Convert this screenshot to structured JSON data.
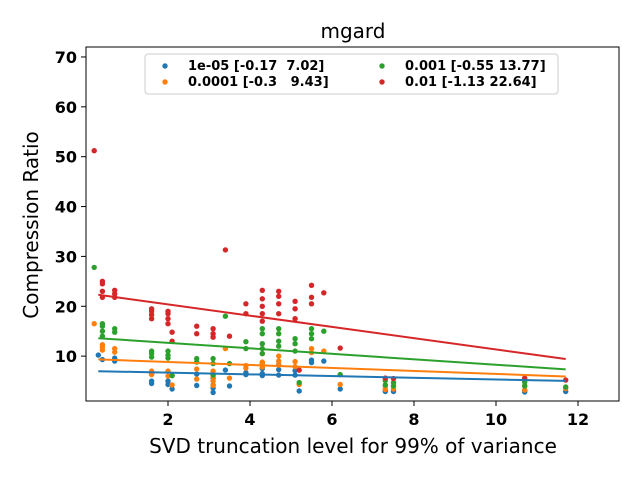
{
  "chart_data": {
    "type": "scatter",
    "title": "mgard",
    "xlabel": "SVD truncation level for 99% of variance",
    "ylabel": "Compression Ratio",
    "xlim": [
      0.0,
      13.0
    ],
    "ylim": [
      1.0,
      72.0
    ],
    "xticks": [
      2,
      4,
      6,
      8,
      10,
      12
    ],
    "yticks": [
      10,
      20,
      30,
      40,
      50,
      60,
      70
    ],
    "grid": false,
    "legend_position": "top-center",
    "legend_columns": 2,
    "series": [
      {
        "name": "1e-05 [-0.17  7.02]",
        "color": "#1f77b4",
        "slope": -0.17,
        "intercept": 7.02,
        "points": [
          [
            0.3,
            10.2
          ],
          [
            0.4,
            9.3
          ],
          [
            0.7,
            9.0
          ],
          [
            0.7,
            9.6
          ],
          [
            1.6,
            4.5
          ],
          [
            1.6,
            5.0
          ],
          [
            1.6,
            6.5
          ],
          [
            2.0,
            4.3
          ],
          [
            2.0,
            5.0
          ],
          [
            2.1,
            3.4
          ],
          [
            2.1,
            6.1
          ],
          [
            2.7,
            4.1
          ],
          [
            2.7,
            6.4
          ],
          [
            3.1,
            2.7
          ],
          [
            3.1,
            3.6
          ],
          [
            3.1,
            4.2
          ],
          [
            3.1,
            5.6
          ],
          [
            3.4,
            7.2
          ],
          [
            3.5,
            4.0
          ],
          [
            3.9,
            6.3
          ],
          [
            3.9,
            6.7
          ],
          [
            4.3,
            6.1
          ],
          [
            4.3,
            6.5
          ],
          [
            4.3,
            7.5
          ],
          [
            4.3,
            8.6
          ],
          [
            4.7,
            6.2
          ],
          [
            4.7,
            7.3
          ],
          [
            4.7,
            8.3
          ],
          [
            5.1,
            6.2
          ],
          [
            5.1,
            7.1
          ],
          [
            5.2,
            3.0
          ],
          [
            5.5,
            8.7
          ],
          [
            5.5,
            9.2
          ],
          [
            5.8,
            9.0
          ],
          [
            6.2,
            3.4
          ],
          [
            7.3,
            2.9
          ],
          [
            7.3,
            3.3
          ],
          [
            7.5,
            2.9
          ],
          [
            7.5,
            3.2
          ],
          [
            10.7,
            2.8
          ],
          [
            10.7,
            3.1
          ],
          [
            11.7,
            2.9
          ]
        ]
      },
      {
        "name": "0.0001 [-0.3   9.43]",
        "color": "#ff7f0e",
        "slope": -0.3,
        "intercept": 9.43,
        "points": [
          [
            0.2,
            16.5
          ],
          [
            0.4,
            11.2
          ],
          [
            0.4,
            11.8
          ],
          [
            0.4,
            12.3
          ],
          [
            0.7,
            10.8
          ],
          [
            0.7,
            11.5
          ],
          [
            1.6,
            6.3
          ],
          [
            1.6,
            7.0
          ],
          [
            2.0,
            6.0
          ],
          [
            2.0,
            7.0
          ],
          [
            2.1,
            4.2
          ],
          [
            2.7,
            5.4
          ],
          [
            2.7,
            7.4
          ],
          [
            3.1,
            4.1
          ],
          [
            3.1,
            5.0
          ],
          [
            3.1,
            5.8
          ],
          [
            3.1,
            7.0
          ],
          [
            3.4,
            11.5
          ],
          [
            3.5,
            5.6
          ],
          [
            3.9,
            7.6
          ],
          [
            3.9,
            8.1
          ],
          [
            4.3,
            7.8
          ],
          [
            4.3,
            8.3
          ],
          [
            4.3,
            8.8
          ],
          [
            4.3,
            10.5
          ],
          [
            4.7,
            8.2
          ],
          [
            4.7,
            9.0
          ],
          [
            4.7,
            10.0
          ],
          [
            5.1,
            7.9
          ],
          [
            5.1,
            8.9
          ],
          [
            5.2,
            4.3
          ],
          [
            5.5,
            10.7
          ],
          [
            5.5,
            11.5
          ],
          [
            5.8,
            11.0
          ],
          [
            6.2,
            4.3
          ],
          [
            7.3,
            3.3
          ],
          [
            7.3,
            4.0
          ],
          [
            7.5,
            3.4
          ],
          [
            7.5,
            4.0
          ],
          [
            10.7,
            3.2
          ],
          [
            10.7,
            4.0
          ],
          [
            11.7,
            3.5
          ]
        ]
      },
      {
        "name": "0.001 [-0.55 13.77]",
        "color": "#2ca02c",
        "slope": -0.55,
        "intercept": 13.77,
        "points": [
          [
            0.2,
            27.8
          ],
          [
            0.4,
            14.0
          ],
          [
            0.4,
            15.0
          ],
          [
            0.4,
            16.0
          ],
          [
            0.4,
            16.5
          ],
          [
            0.7,
            14.8
          ],
          [
            0.7,
            15.5
          ],
          [
            1.6,
            9.8
          ],
          [
            1.6,
            10.5
          ],
          [
            1.6,
            11.0
          ],
          [
            2.0,
            9.6
          ],
          [
            2.0,
            10.2
          ],
          [
            2.0,
            11.0
          ],
          [
            2.1,
            6.1
          ],
          [
            2.7,
            8.8
          ],
          [
            2.7,
            9.5
          ],
          [
            3.1,
            6.2
          ],
          [
            3.1,
            8.5
          ],
          [
            3.1,
            9.5
          ],
          [
            3.4,
            18.0
          ],
          [
            3.5,
            8.5
          ],
          [
            3.9,
            11.5
          ],
          [
            3.9,
            12.9
          ],
          [
            4.3,
            10.5
          ],
          [
            4.3,
            11.5
          ],
          [
            4.3,
            12.5
          ],
          [
            4.3,
            14.5
          ],
          [
            4.3,
            15.5
          ],
          [
            4.7,
            12.0
          ],
          [
            4.7,
            13.0
          ],
          [
            4.7,
            14.5
          ],
          [
            4.7,
            15.5
          ],
          [
            5.1,
            11.0
          ],
          [
            5.1,
            12.5
          ],
          [
            5.1,
            13.5
          ],
          [
            5.2,
            4.7
          ],
          [
            5.5,
            13.5
          ],
          [
            5.5,
            14.5
          ],
          [
            5.5,
            15.5
          ],
          [
            5.8,
            15.0
          ],
          [
            6.2,
            6.3
          ],
          [
            7.3,
            4.2
          ],
          [
            7.3,
            5.1
          ],
          [
            7.5,
            4.0
          ],
          [
            7.5,
            4.7
          ],
          [
            10.7,
            4.0
          ],
          [
            10.7,
            4.8
          ],
          [
            11.7,
            3.8
          ]
        ]
      },
      {
        "name": "0.01 [-1.13 22.64]",
        "color": "#d62728",
        "slope": -1.13,
        "intercept": 22.64,
        "points": [
          [
            0.2,
            51.2
          ],
          [
            0.4,
            21.8
          ],
          [
            0.4,
            23.0
          ],
          [
            0.4,
            24.5
          ],
          [
            0.4,
            25.0
          ],
          [
            0.7,
            21.8
          ],
          [
            0.7,
            22.5
          ],
          [
            0.7,
            23.2
          ],
          [
            1.6,
            17.5
          ],
          [
            1.6,
            18.3
          ],
          [
            1.6,
            19.0
          ],
          [
            1.6,
            19.5
          ],
          [
            2.0,
            16.5
          ],
          [
            2.0,
            17.5
          ],
          [
            2.0,
            18.5
          ],
          [
            2.0,
            19.0
          ],
          [
            2.1,
            14.8
          ],
          [
            2.1,
            13.0
          ],
          [
            2.7,
            14.5
          ],
          [
            2.7,
            16.0
          ],
          [
            3.1,
            13.8
          ],
          [
            3.1,
            14.5
          ],
          [
            3.1,
            15.5
          ],
          [
            3.4,
            31.3
          ],
          [
            3.5,
            14.0
          ],
          [
            3.9,
            18.5
          ],
          [
            3.9,
            20.5
          ],
          [
            4.3,
            17.0
          ],
          [
            4.3,
            18.5
          ],
          [
            4.3,
            20.0
          ],
          [
            4.3,
            21.5
          ],
          [
            4.3,
            23.2
          ],
          [
            4.7,
            18.5
          ],
          [
            4.7,
            20.5
          ],
          [
            4.7,
            22.0
          ],
          [
            4.7,
            23.0
          ],
          [
            5.1,
            17.5
          ],
          [
            5.1,
            19.5
          ],
          [
            5.1,
            21.0
          ],
          [
            5.2,
            7.2
          ],
          [
            5.5,
            20.5
          ],
          [
            5.5,
            21.8
          ],
          [
            5.5,
            24.2
          ],
          [
            5.8,
            22.7
          ],
          [
            6.2,
            11.6
          ],
          [
            7.3,
            5.6
          ],
          [
            7.5,
            5.5
          ],
          [
            10.7,
            5.6
          ],
          [
            11.7,
            5.2
          ]
        ]
      }
    ]
  }
}
